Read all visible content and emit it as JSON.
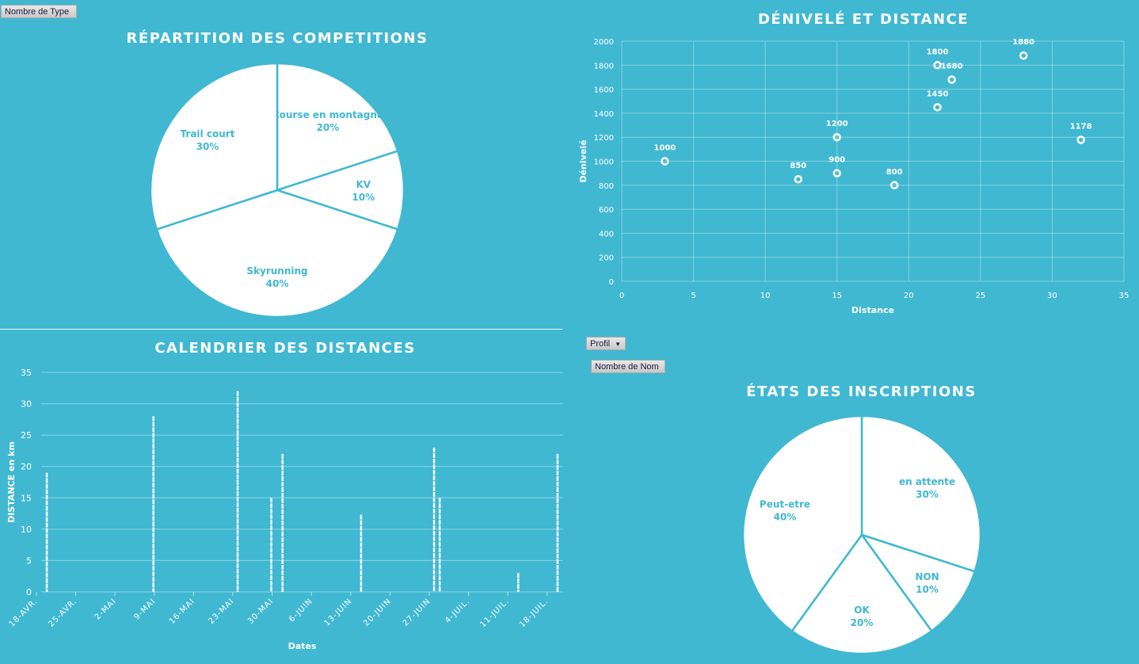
{
  "controls": {
    "type_field": "Nombre de Type",
    "profil_filter": "Profil",
    "nom_field": "Nombre de Nom"
  },
  "colors": {
    "background": "#40b8d2",
    "mark": "#ffffff",
    "label": "#40b8d2"
  },
  "chart_data": [
    {
      "type": "pie",
      "title": "RÉPARTITION DES COMPETITIONS",
      "slices": [
        {
          "label": "Course en montagne",
          "value": 20,
          "pct": "20%"
        },
        {
          "label": "KV",
          "value": 10,
          "pct": "10%"
        },
        {
          "label": "Skyrunning",
          "value": 40,
          "pct": "40%"
        },
        {
          "label": "Trail court",
          "value": 30,
          "pct": "30%"
        }
      ]
    },
    {
      "type": "scatter",
      "title": "DÉNIVELÉ ET DISTANCE",
      "xlabel": "Distance",
      "ylabel": "Dénivelé",
      "xlim": [
        0,
        35
      ],
      "ylim": [
        0,
        2000
      ],
      "xticks": [
        "0",
        "5",
        "10",
        "15",
        "20",
        "25",
        "30",
        "35"
      ],
      "yticks": [
        "0",
        "200",
        "400",
        "600",
        "800",
        "1000",
        "1200",
        "1400",
        "1600",
        "1800",
        "2000"
      ],
      "points": [
        {
          "x": 3,
          "y": 1000,
          "label": "1000"
        },
        {
          "x": 12.3,
          "y": 850,
          "label": "850"
        },
        {
          "x": 15,
          "y": 1200,
          "label": "1200"
        },
        {
          "x": 15,
          "y": 900,
          "label": "900"
        },
        {
          "x": 19,
          "y": 800,
          "label": "800"
        },
        {
          "x": 22,
          "y": 1800,
          "label": "1800"
        },
        {
          "x": 23,
          "y": 1680,
          "label": "1680"
        },
        {
          "x": 22,
          "y": 1450,
          "label": "1450"
        },
        {
          "x": 28,
          "y": 1880,
          "label": "1880"
        },
        {
          "x": 32,
          "y": 1178,
          "label": "1178"
        }
      ],
      "grid": true
    },
    {
      "type": "bar",
      "title": "CALENDRIER DES DISTANCES",
      "xlabel": "Dates",
      "ylabel": "DISTANCE en km",
      "ylim": [
        0,
        35
      ],
      "yticks": [
        "0",
        "5",
        "10",
        "15",
        "20",
        "25",
        "30",
        "35"
      ],
      "xticks": [
        "18-AVR.",
        "25-AVR.",
        "2-MAI",
        "9-MAI",
        "16-MAI",
        "23-MAI",
        "30-MAI",
        "6-JUIN",
        "13-JUIN",
        "20-JUIN",
        "27-JUIN",
        "4-JUIL.",
        "11-JUIL.",
        "18-JUIL."
      ],
      "day_range": [
        0,
        93
      ],
      "bars": [
        {
          "day": 1,
          "date": "19-avr.",
          "value": 19
        },
        {
          "day": 20,
          "date": "8-mai",
          "value": 28
        },
        {
          "day": 35,
          "date": "23-mai",
          "value": 32
        },
        {
          "day": 41,
          "date": "29-mai",
          "value": 15
        },
        {
          "day": 43,
          "date": "31-mai",
          "value": 22
        },
        {
          "day": 57,
          "date": "14-juin",
          "value": 12.3
        },
        {
          "day": 70,
          "date": "27-juin",
          "value": 23
        },
        {
          "day": 71,
          "date": "28-juin",
          "value": 15
        },
        {
          "day": 85,
          "date": "12-juil.",
          "value": 3
        },
        {
          "day": 92,
          "date": "19-juil.",
          "value": 22
        }
      ]
    },
    {
      "type": "pie",
      "title": "ÉTATS DES INSCRIPTIONS",
      "slices": [
        {
          "label": "en attente",
          "value": 30,
          "pct": "30%"
        },
        {
          "label": "NON",
          "value": 10,
          "pct": "10%"
        },
        {
          "label": "OK",
          "value": 20,
          "pct": "20%"
        },
        {
          "label": "Peut-etre",
          "value": 40,
          "pct": "40%"
        }
      ]
    }
  ]
}
